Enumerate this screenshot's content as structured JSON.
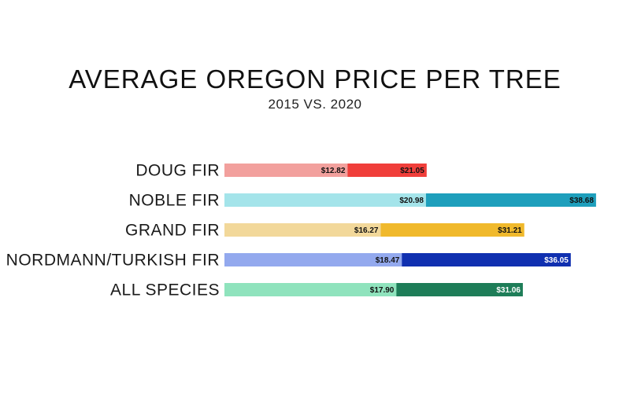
{
  "chart_data": {
    "type": "bar",
    "orientation": "horizontal",
    "layout": "overlapping",
    "title": "AVERAGE OREGON PRICE PER TREE",
    "subtitle": "2015 VS. 2020",
    "categories": [
      "DOUG FIR",
      "NOBLE FIR",
      "GRAND FIR",
      "NORDMANN/TURKISH FIR",
      "ALL SPECIES"
    ],
    "series": [
      {
        "values": [
          12.82,
          20.98,
          16.27,
          18.47,
          17.9
        ],
        "labels": [
          "$12.82",
          "$20.98",
          "$16.27",
          "$18.47",
          "$17.90"
        ],
        "colors": [
          "#f2a09d",
          "#a4e4ea",
          "#f2d89a",
          "#93a9ee",
          "#8fe3bd"
        ]
      },
      {
        "values": [
          21.05,
          38.68,
          31.21,
          36.05,
          31.06
        ],
        "labels": [
          "$21.05",
          "$38.68",
          "$31.21",
          "$36.05",
          "$31.06"
        ],
        "colors": [
          "#f03e3a",
          "#1e9fbc",
          "#f0b92c",
          "#1030b0",
          "#1e7d58"
        ]
      }
    ],
    "xlim": [
      0,
      40
    ],
    "grid": false,
    "legend": "none"
  }
}
